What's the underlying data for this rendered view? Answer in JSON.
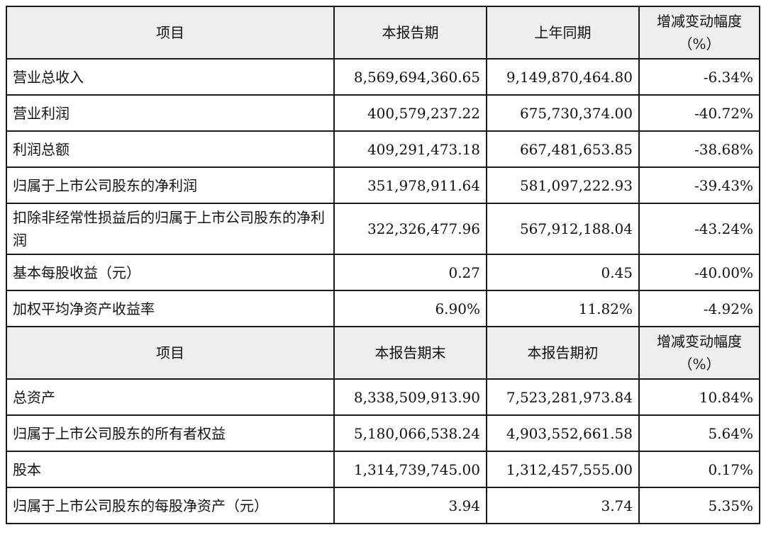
{
  "table1": {
    "header": {
      "item": "项目",
      "current": "本报告期",
      "previous": "上年同期",
      "change_line1": "增减变动幅度",
      "change_line2": "（%）"
    },
    "rows": [
      {
        "label": "营业总收入",
        "current": "8,569,694,360.65",
        "previous": "9,149,870,464.80",
        "change": "-6.34%"
      },
      {
        "label": "营业利润",
        "current": "400,579,237.22",
        "previous": "675,730,374.00",
        "change": "-40.72%"
      },
      {
        "label": "利润总额",
        "current": "409,291,473.18",
        "previous": "667,481,653.85",
        "change": "-38.68%"
      },
      {
        "label": "归属于上市公司股东的净利润",
        "current": "351,978,911.64",
        "previous": "581,097,222.93",
        "change": "-39.43%"
      },
      {
        "label": "扣除非经常性损益后的归属于上市公司股东的净利润",
        "current": "322,326,477.96",
        "previous": "567,912,188.04",
        "change": "-43.24%"
      },
      {
        "label": "基本每股收益（元）",
        "current": "0.27",
        "previous": "0.45",
        "change": "-40.00%"
      },
      {
        "label": "加权平均净资产收益率",
        "current": "6.90%",
        "previous": "11.82%",
        "change": "-4.92%"
      }
    ]
  },
  "table2": {
    "header": {
      "item": "项目",
      "current": "本报告期末",
      "previous": "本报告期初",
      "change_line1": "增减变动幅度",
      "change_line2": "（%）"
    },
    "rows": [
      {
        "label": "总资产",
        "current": "8,338,509,913.90",
        "previous": "7,523,281,973.84",
        "change": "10.84%"
      },
      {
        "label": "归属于上市公司股东的所有者权益",
        "current": "5,180,066,538.24",
        "previous": "4,903,552,661.58",
        "change": "5.64%"
      },
      {
        "label": "股本",
        "current": "1,314,739,745.00",
        "previous": "1,312,457,555.00",
        "change": "0.17%"
      },
      {
        "label": "归属于上市公司股东的每股净资产（元）",
        "current": "3.94",
        "previous": "3.74",
        "change": "5.35%"
      }
    ]
  }
}
